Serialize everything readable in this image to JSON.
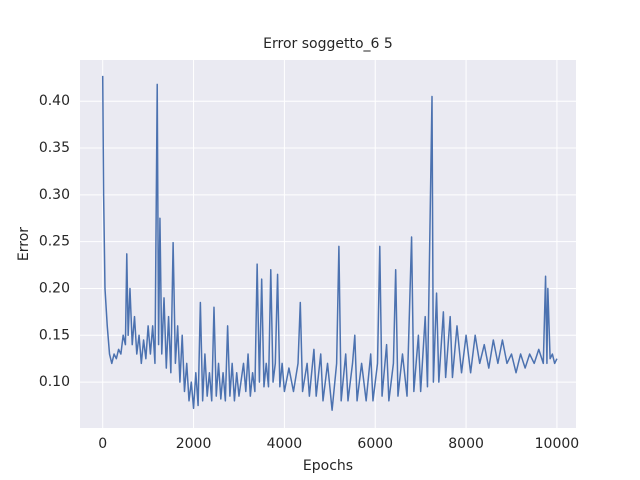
{
  "chart_data": {
    "type": "line",
    "title": "Error soggetto_6 5",
    "x_label": "Epochs",
    "y_label": "Error",
    "xlim": [
      -500,
      10420
    ],
    "ylim": [
      0.051,
      0.444
    ],
    "xticks": [
      0,
      2000,
      4000,
      6000,
      8000,
      10000
    ],
    "yticks": [
      {
        "value": 0.1,
        "label": "0.10"
      },
      {
        "value": 0.15,
        "label": "0.15"
      },
      {
        "value": 0.2,
        "label": "0.20"
      },
      {
        "value": 0.25,
        "label": "0.25"
      },
      {
        "value": 0.3,
        "label": "0.30"
      },
      {
        "value": 0.35,
        "label": "0.35"
      },
      {
        "value": 0.4,
        "label": "0.40"
      }
    ],
    "grid": true,
    "series": [
      {
        "color": "#4c72b0",
        "x": [
          0,
          20,
          50,
          100,
          150,
          200,
          250,
          300,
          350,
          400,
          450,
          500,
          530,
          560,
          600,
          650,
          700,
          750,
          800,
          850,
          900,
          950,
          1000,
          1050,
          1100,
          1150,
          1200,
          1230,
          1260,
          1300,
          1350,
          1400,
          1450,
          1500,
          1550,
          1600,
          1650,
          1700,
          1750,
          1800,
          1850,
          1900,
          1950,
          2000,
          2050,
          2100,
          2150,
          2200,
          2250,
          2300,
          2350,
          2400,
          2450,
          2500,
          2550,
          2600,
          2650,
          2700,
          2750,
          2800,
          2850,
          2900,
          2950,
          3000,
          3100,
          3150,
          3200,
          3250,
          3300,
          3350,
          3400,
          3450,
          3500,
          3550,
          3600,
          3650,
          3700,
          3750,
          3800,
          3850,
          3900,
          3950,
          4000,
          4100,
          4200,
          4300,
          4350,
          4400,
          4500,
          4550,
          4650,
          4700,
          4800,
          4850,
          4950,
          5050,
          5150,
          5200,
          5250,
          5350,
          5400,
          5500,
          5550,
          5600,
          5700,
          5800,
          5900,
          5950,
          6050,
          6100,
          6150,
          6250,
          6300,
          6400,
          6450,
          6500,
          6600,
          6700,
          6800,
          6850,
          6950,
          7000,
          7100,
          7150,
          7250,
          7280,
          7350,
          7400,
          7500,
          7550,
          7650,
          7700,
          7800,
          7900,
          8000,
          8100,
          8200,
          8300,
          8400,
          8500,
          8600,
          8700,
          8800,
          8900,
          9000,
          9100,
          9200,
          9300,
          9400,
          9500,
          9600,
          9700,
          9750,
          9780,
          9800,
          9850,
          9900,
          9950,
          10000
        ],
        "values": [
          0.427,
          0.3,
          0.2,
          0.16,
          0.13,
          0.12,
          0.13,
          0.125,
          0.135,
          0.13,
          0.15,
          0.14,
          0.237,
          0.15,
          0.2,
          0.14,
          0.17,
          0.13,
          0.15,
          0.12,
          0.145,
          0.125,
          0.16,
          0.13,
          0.16,
          0.12,
          0.418,
          0.14,
          0.275,
          0.13,
          0.19,
          0.115,
          0.17,
          0.11,
          0.249,
          0.12,
          0.16,
          0.1,
          0.15,
          0.09,
          0.12,
          0.08,
          0.1,
          0.072,
          0.11,
          0.075,
          0.185,
          0.08,
          0.13,
          0.085,
          0.11,
          0.08,
          0.18,
          0.085,
          0.12,
          0.082,
          0.11,
          0.08,
          0.16,
          0.085,
          0.12,
          0.08,
          0.11,
          0.085,
          0.12,
          0.09,
          0.13,
          0.085,
          0.11,
          0.09,
          0.226,
          0.1,
          0.21,
          0.095,
          0.12,
          0.095,
          0.22,
          0.1,
          0.12,
          0.215,
          0.095,
          0.12,
          0.09,
          0.115,
          0.09,
          0.12,
          0.185,
          0.09,
          0.12,
          0.085,
          0.135,
          0.085,
          0.13,
          0.08,
          0.12,
          0.07,
          0.12,
          0.245,
          0.08,
          0.13,
          0.08,
          0.12,
          0.15,
          0.08,
          0.12,
          0.08,
          0.13,
          0.08,
          0.12,
          0.245,
          0.085,
          0.14,
          0.08,
          0.12,
          0.22,
          0.085,
          0.13,
          0.085,
          0.255,
          0.09,
          0.15,
          0.09,
          0.17,
          0.095,
          0.405,
          0.1,
          0.195,
          0.1,
          0.175,
          0.105,
          0.17,
          0.105,
          0.16,
          0.11,
          0.15,
          0.11,
          0.15,
          0.12,
          0.14,
          0.115,
          0.145,
          0.12,
          0.145,
          0.12,
          0.13,
          0.11,
          0.13,
          0.115,
          0.13,
          0.12,
          0.135,
          0.12,
          0.213,
          0.12,
          0.2,
          0.125,
          0.13,
          0.12,
          0.125
        ]
      }
    ]
  }
}
